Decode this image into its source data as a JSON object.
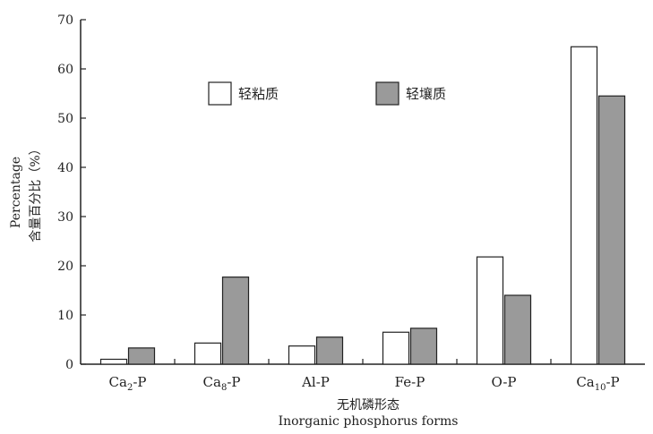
{
  "chart_data": {
    "type": "bar",
    "categories": [
      "Ca2-P",
      "Ca8-P",
      "Al-P",
      "Fe-P",
      "O-P",
      "Ca10-P"
    ],
    "category_labels": [
      {
        "base": "Ca",
        "sub": "2",
        "suffix": "-P"
      },
      {
        "base": "Ca",
        "sub": "8",
        "suffix": "-P"
      },
      {
        "base": "Al-P",
        "sub": "",
        "suffix": ""
      },
      {
        "base": "Fe-P",
        "sub": "",
        "suffix": ""
      },
      {
        "base": "O-P",
        "sub": "",
        "suffix": ""
      },
      {
        "base": "Ca",
        "sub": "10",
        "suffix": "-P"
      }
    ],
    "series": [
      {
        "name": "轻粘质",
        "values": [
          1,
          4.3,
          3.7,
          6.5,
          21.8,
          64.5
        ],
        "color": "#ffffff"
      },
      {
        "name": "轻壤质",
        "values": [
          3.3,
          17.7,
          5.5,
          7.3,
          14,
          54.5
        ],
        "color": "#9a9a9a"
      }
    ],
    "xlabel_cn": "无机磷形态",
    "xlabel_en": "Inorganic phosphorus forms",
    "ylabel_en": "Percentage",
    "ylabel_cn": "含量百分比（%）",
    "ylim": [
      0,
      70
    ],
    "yticks": [
      0,
      10,
      20,
      30,
      40,
      50,
      60,
      70
    ],
    "grid": false,
    "legend_position": "top-center"
  }
}
